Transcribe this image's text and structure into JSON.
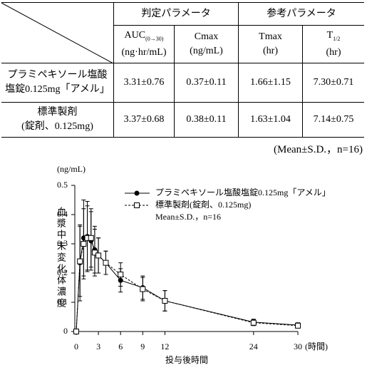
{
  "table": {
    "group_headers": [
      "判定パラメータ",
      "参考パラメータ"
    ],
    "columns": [
      {
        "name": "AUC",
        "sub": "(0→30)",
        "unit": "(ng·hr/mL)"
      },
      {
        "name": "Cmax",
        "unit": "(ng/mL)"
      },
      {
        "name": "Tmax",
        "unit": "(hr)"
      },
      {
        "name": "T",
        "sub": "1/2",
        "unit": "(hr)"
      }
    ],
    "rows": [
      {
        "label": [
          "プラミペキソール塩酸",
          "塩錠0.125mg「アメル」"
        ],
        "cells": [
          "3.31±0.76",
          "0.37±0.11",
          "1.66±1.15",
          "7.30±0.71"
        ]
      },
      {
        "label": [
          "標準製剤",
          "(錠剤、0.125mg)"
        ],
        "cells": [
          "3.37±0.68",
          "0.38±0.11",
          "1.63±1.04",
          "7.14±0.75"
        ]
      }
    ],
    "note": "(Mean±S.D.，n=16)"
  },
  "chart_data": {
    "type": "line",
    "y_unit": "(ng/mL)",
    "y_label": "血漿中未変化体濃度",
    "x_label": "投与後時間",
    "x_unit": "(時間)",
    "legend_note": "Mean±S.D.，n=16",
    "x": [
      0,
      0.5,
      1,
      1.5,
      2,
      2.5,
      3,
      4,
      6,
      9,
      12,
      24,
      30
    ],
    "xlim": [
      0,
      30
    ],
    "xticks": [
      0,
      3,
      6,
      9,
      12,
      24,
      30
    ],
    "ylim": [
      0,
      0.5
    ],
    "yticks": [
      0,
      0.1,
      0.2,
      0.3,
      0.4,
      0.5
    ],
    "series": [
      {
        "name": "プラミペキソール塩酸塩錠0.125mg「アメル」",
        "color": "#000000",
        "line_style": "solid",
        "marker": "filled-circle",
        "values": [
          0,
          0.235,
          0.32,
          0.325,
          0.31,
          0.28,
          0.26,
          0.235,
          0.175,
          0.15,
          0.105,
          0.032,
          0.022
        ],
        "errors": [
          0,
          0.13,
          0.13,
          0.12,
          0.1,
          0.08,
          0.06,
          0.04,
          0.04,
          0.04,
          0.035,
          0.01,
          0.008
        ]
      },
      {
        "name": "標準製剤(錠剤、0.125mg)",
        "color": "#000000",
        "line_style": "dashed",
        "marker": "open-square",
        "values": [
          0,
          0.24,
          0.3,
          0.32,
          0.32,
          0.27,
          0.26,
          0.235,
          0.195,
          0.145,
          0.105,
          0.03,
          0.02
        ],
        "errors": [
          0,
          0.12,
          0.12,
          0.11,
          0.1,
          0.08,
          0.06,
          0.04,
          0.04,
          0.04,
          0.035,
          0.01,
          0.008
        ]
      }
    ]
  }
}
